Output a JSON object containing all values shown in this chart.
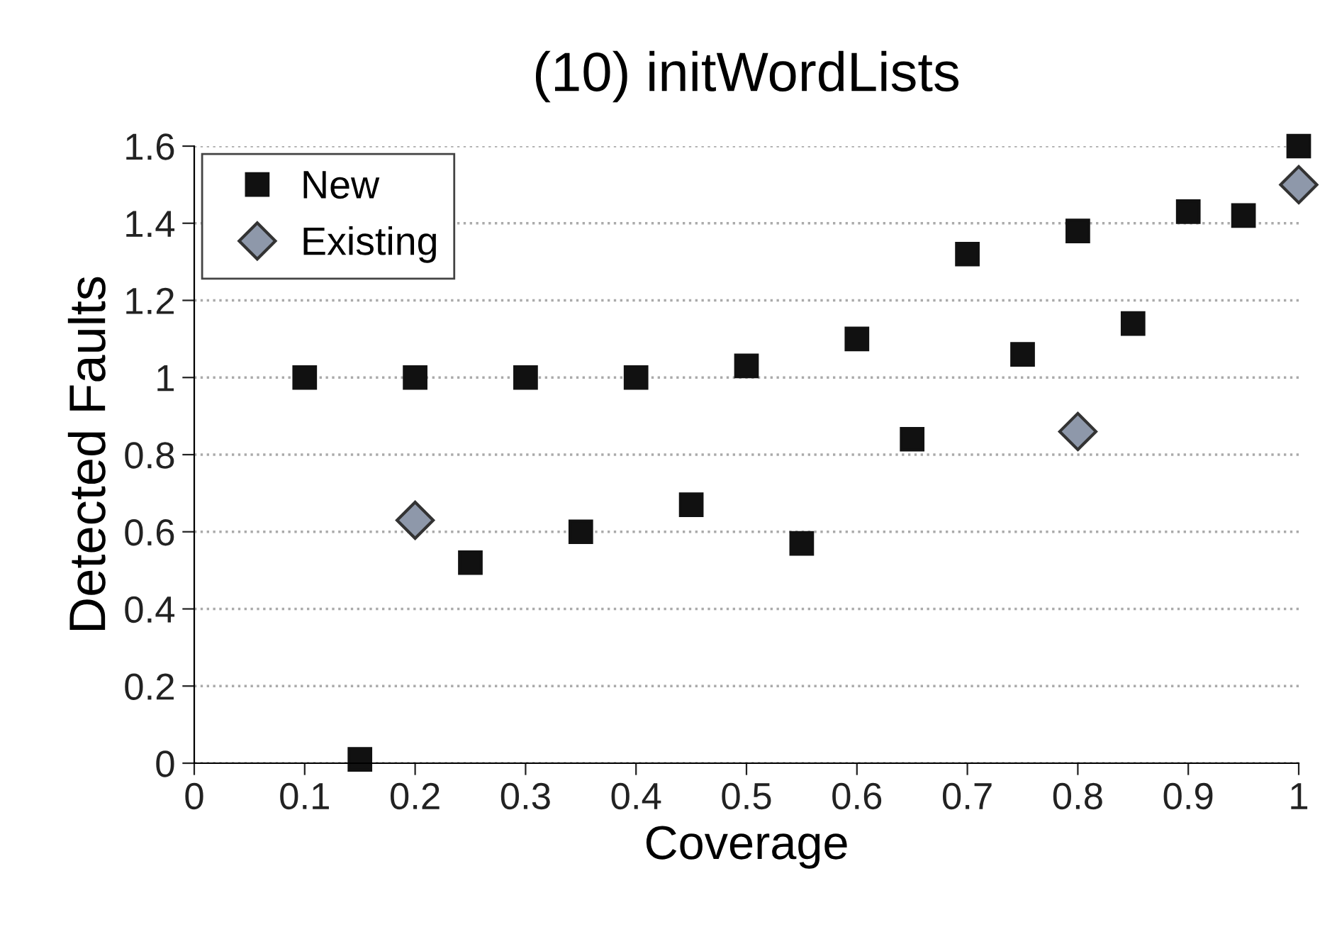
{
  "chart_data": {
    "type": "scatter",
    "title": "(10) initWordLists",
    "xlabel": "Coverage",
    "ylabel": "Detected Faults",
    "series": [
      {
        "name": "New",
        "color": "#111111",
        "marker": "square",
        "x": [
          0.1,
          0.15,
          0.2,
          0.25,
          0.3,
          0.35,
          0.4,
          0.45,
          0.5,
          0.55,
          0.6,
          0.65,
          0.7,
          0.75,
          0.8,
          0.85,
          0.9,
          0.95,
          1.0
        ],
        "values": [
          1.0,
          0.01,
          1.0,
          0.52,
          1.0,
          0.6,
          1.0,
          0.67,
          1.03,
          0.57,
          1.1,
          0.84,
          1.32,
          1.06,
          1.38,
          1.14,
          1.43,
          1.42,
          1.6
        ]
      },
      {
        "name": "Existing",
        "color": "#8e98aa",
        "marker": "diamond",
        "x": [
          0.2,
          0.8,
          1.0
        ],
        "values": [
          0.63,
          0.86,
          1.5
        ]
      }
    ],
    "xlim": [
      0,
      1
    ],
    "xticks": [
      0,
      0.1,
      0.2,
      0.3,
      0.4,
      0.5,
      0.6,
      0.7,
      0.8,
      0.9,
      1
    ],
    "ylim": [
      0,
      1.6
    ],
    "yticks": [
      0,
      0.2,
      0.4,
      0.6,
      0.8,
      1,
      1.2,
      1.4,
      1.6
    ],
    "grid": "y",
    "legend": "top left"
  }
}
